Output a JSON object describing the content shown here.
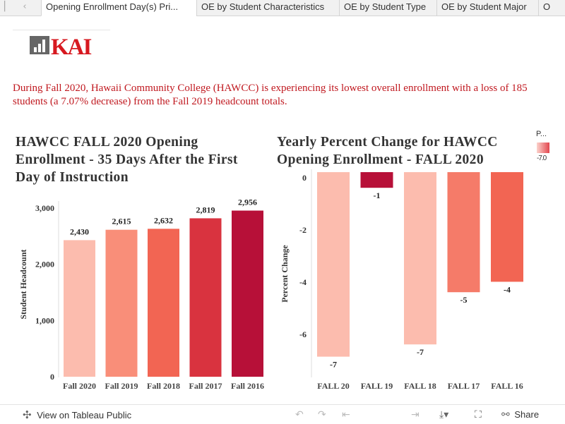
{
  "tabs": {
    "prev_icon": "chevron-left-icon",
    "items": [
      {
        "label": "Opening Enrollment Day(s) Pri...",
        "active": true
      },
      {
        "label": "OE by Student Characteristics",
        "active": false
      },
      {
        "label": "OE by Student Type",
        "active": false
      },
      {
        "label": "OE by Student Major",
        "active": false
      },
      {
        "label": "O",
        "active": false
      }
    ]
  },
  "logo": {
    "text": "KAI",
    "icon": "bar-chart-logo-icon",
    "color": "#d71920",
    "icon_bg": "#666666"
  },
  "summary": "During Fall 2020, Hawaii Community College (HAWCC) is experiencing its lowest overall enrollment with a  loss of 185 students (a 7.07% decrease) from the Fall 2019 headcount totals.",
  "chart_titles": {
    "headcount": "HAWCC FALL 2020 Opening Enrollment - 35 Days After the First Day of Instruction",
    "percent_change": "Yearly Percent Change for HAWCC Opening Enrollment - FALL 2020"
  },
  "legend": {
    "title": "P...",
    "label": "-7.0",
    "colors": [
      "#fcd3cc",
      "#e2464e"
    ]
  },
  "chart_data": [
    {
      "type": "bar",
      "title": "HAWCC FALL 2020 Opening Enrollment - 35 Days After the First Day of Instruction",
      "categories": [
        "Fall 2020",
        "Fall 2019",
        "Fall 2018",
        "Fall 2017",
        "Fall 2016"
      ],
      "values": [
        2430,
        2615,
        2632,
        2819,
        2956
      ],
      "value_labels": [
        "2,430",
        "2,615",
        "2,632",
        "2,819",
        "2,956"
      ],
      "colors": [
        "#fcbcae",
        "#f98e79",
        "#f26553",
        "#d9333f",
        "#b71038"
      ],
      "xlabel": "",
      "ylabel": "Student Headcount",
      "ylim": [
        0,
        3000
      ],
      "yticks": [
        0,
        1000,
        2000,
        3000
      ],
      "ytick_labels": [
        "0",
        "1,000",
        "2,000",
        "3,000"
      ],
      "grid": false
    },
    {
      "type": "bar",
      "title": "Yearly Percent Change for HAWCC Opening Enrollment - FALL 2020",
      "categories": [
        "FALL 20",
        "FALL 19",
        "FALL 18",
        "FALL 17",
        "FALL 16"
      ],
      "values": [
        -7.07,
        -0.6,
        -6.6,
        -4.6,
        -4.2
      ],
      "value_labels": [
        "-7",
        "-1",
        "-7",
        "-5",
        "-4"
      ],
      "colors": [
        "#fcbcae",
        "#b71038",
        "#fcbcae",
        "#f57b69",
        "#f26553"
      ],
      "xlabel": "",
      "ylabel": "Percent Change",
      "ylim": [
        -7.8,
        0.3
      ],
      "yticks": [
        0,
        -2,
        -4,
        -6
      ],
      "ytick_labels": [
        "0",
        "-2",
        "-4",
        "-6"
      ],
      "grid": false,
      "legend_position": "top-right"
    }
  ],
  "bottom": {
    "view_label": "View on Tableau Public",
    "view_icon": "tableau-logo-icon",
    "undo_icon": "undo-icon",
    "redo_icon": "redo-icon",
    "revert_icon": "revert-icon",
    "forward_icon": "forward-icon",
    "download_icon": "download-icon",
    "fullscreen_icon": "fullscreen-icon",
    "share_icon": "share-icon",
    "share_label": "Share"
  }
}
